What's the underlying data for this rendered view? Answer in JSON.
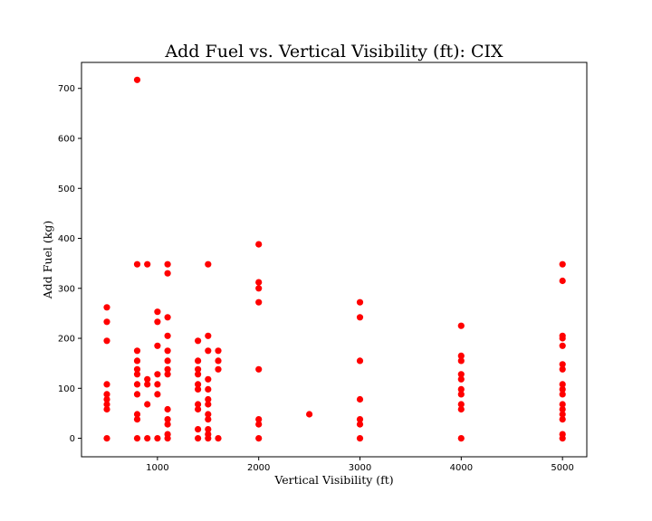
{
  "chart_data": {
    "type": "scatter",
    "title": "Add Fuel vs. Vertical Visibility (ft): CIX",
    "xlabel": "Vertical Visibility (ft)",
    "ylabel": "Add Fuel (kg)",
    "xlim": [
      250,
      5240
    ],
    "ylim": [
      -37,
      752
    ],
    "xticks": [
      1000,
      2000,
      3000,
      4000,
      5000
    ],
    "yticks": [
      0,
      100,
      200,
      300,
      400,
      500,
      600,
      700
    ],
    "grid": false,
    "marker_color": "#ff0000",
    "points": [
      {
        "x": 500,
        "y": 0
      },
      {
        "x": 500,
        "y": 58
      },
      {
        "x": 500,
        "y": 68
      },
      {
        "x": 500,
        "y": 78
      },
      {
        "x": 500,
        "y": 88
      },
      {
        "x": 500,
        "y": 108
      },
      {
        "x": 500,
        "y": 195
      },
      {
        "x": 500,
        "y": 233
      },
      {
        "x": 500,
        "y": 262
      },
      {
        "x": 800,
        "y": 0
      },
      {
        "x": 800,
        "y": 38
      },
      {
        "x": 800,
        "y": 48
      },
      {
        "x": 800,
        "y": 88
      },
      {
        "x": 800,
        "y": 108
      },
      {
        "x": 800,
        "y": 128
      },
      {
        "x": 800,
        "y": 138
      },
      {
        "x": 800,
        "y": 155
      },
      {
        "x": 800,
        "y": 175
      },
      {
        "x": 800,
        "y": 348
      },
      {
        "x": 800,
        "y": 717
      },
      {
        "x": 900,
        "y": 0
      },
      {
        "x": 900,
        "y": 68
      },
      {
        "x": 900,
        "y": 108
      },
      {
        "x": 900,
        "y": 118
      },
      {
        "x": 900,
        "y": 348
      },
      {
        "x": 1000,
        "y": 0
      },
      {
        "x": 1000,
        "y": 88
      },
      {
        "x": 1000,
        "y": 108
      },
      {
        "x": 1000,
        "y": 128
      },
      {
        "x": 1000,
        "y": 185
      },
      {
        "x": 1000,
        "y": 233
      },
      {
        "x": 1000,
        "y": 253
      },
      {
        "x": 1100,
        "y": 0
      },
      {
        "x": 1100,
        "y": 8
      },
      {
        "x": 1100,
        "y": 28
      },
      {
        "x": 1100,
        "y": 38
      },
      {
        "x": 1100,
        "y": 58
      },
      {
        "x": 1100,
        "y": 128
      },
      {
        "x": 1100,
        "y": 138
      },
      {
        "x": 1100,
        "y": 155
      },
      {
        "x": 1100,
        "y": 175
      },
      {
        "x": 1100,
        "y": 205
      },
      {
        "x": 1100,
        "y": 242
      },
      {
        "x": 1100,
        "y": 330
      },
      {
        "x": 1100,
        "y": 348
      },
      {
        "x": 1400,
        "y": 0
      },
      {
        "x": 1400,
        "y": 18
      },
      {
        "x": 1400,
        "y": 58
      },
      {
        "x": 1400,
        "y": 68
      },
      {
        "x": 1400,
        "y": 98
      },
      {
        "x": 1400,
        "y": 108
      },
      {
        "x": 1400,
        "y": 128
      },
      {
        "x": 1400,
        "y": 138
      },
      {
        "x": 1400,
        "y": 155
      },
      {
        "x": 1400,
        "y": 195
      },
      {
        "x": 1500,
        "y": 0
      },
      {
        "x": 1500,
        "y": 8
      },
      {
        "x": 1500,
        "y": 18
      },
      {
        "x": 1500,
        "y": 38
      },
      {
        "x": 1500,
        "y": 48
      },
      {
        "x": 1500,
        "y": 68
      },
      {
        "x": 1500,
        "y": 78
      },
      {
        "x": 1500,
        "y": 98
      },
      {
        "x": 1500,
        "y": 118
      },
      {
        "x": 1500,
        "y": 175
      },
      {
        "x": 1500,
        "y": 205
      },
      {
        "x": 1500,
        "y": 348
      },
      {
        "x": 1600,
        "y": 0
      },
      {
        "x": 1600,
        "y": 138
      },
      {
        "x": 1600,
        "y": 155
      },
      {
        "x": 1600,
        "y": 175
      },
      {
        "x": 2000,
        "y": 0
      },
      {
        "x": 2000,
        "y": 28
      },
      {
        "x": 2000,
        "y": 38
      },
      {
        "x": 2000,
        "y": 138
      },
      {
        "x": 2000,
        "y": 272
      },
      {
        "x": 2000,
        "y": 300
      },
      {
        "x": 2000,
        "y": 312
      },
      {
        "x": 2000,
        "y": 388
      },
      {
        "x": 2500,
        "y": 48
      },
      {
        "x": 3000,
        "y": 0
      },
      {
        "x": 3000,
        "y": 28
      },
      {
        "x": 3000,
        "y": 38
      },
      {
        "x": 3000,
        "y": 78
      },
      {
        "x": 3000,
        "y": 155
      },
      {
        "x": 3000,
        "y": 242
      },
      {
        "x": 3000,
        "y": 272
      },
      {
        "x": 4000,
        "y": 0
      },
      {
        "x": 4000,
        "y": 58
      },
      {
        "x": 4000,
        "y": 68
      },
      {
        "x": 4000,
        "y": 88
      },
      {
        "x": 4000,
        "y": 98
      },
      {
        "x": 4000,
        "y": 118
      },
      {
        "x": 4000,
        "y": 128
      },
      {
        "x": 4000,
        "y": 155
      },
      {
        "x": 4000,
        "y": 165
      },
      {
        "x": 4000,
        "y": 225
      },
      {
        "x": 5000,
        "y": 0
      },
      {
        "x": 5000,
        "y": 8
      },
      {
        "x": 5000,
        "y": 38
      },
      {
        "x": 5000,
        "y": 48
      },
      {
        "x": 5000,
        "y": 58
      },
      {
        "x": 5000,
        "y": 68
      },
      {
        "x": 5000,
        "y": 88
      },
      {
        "x": 5000,
        "y": 98
      },
      {
        "x": 5000,
        "y": 108
      },
      {
        "x": 5000,
        "y": 138
      },
      {
        "x": 5000,
        "y": 148
      },
      {
        "x": 5000,
        "y": 185
      },
      {
        "x": 5000,
        "y": 200
      },
      {
        "x": 5000,
        "y": 205
      },
      {
        "x": 5000,
        "y": 315
      },
      {
        "x": 5000,
        "y": 348
      }
    ]
  }
}
